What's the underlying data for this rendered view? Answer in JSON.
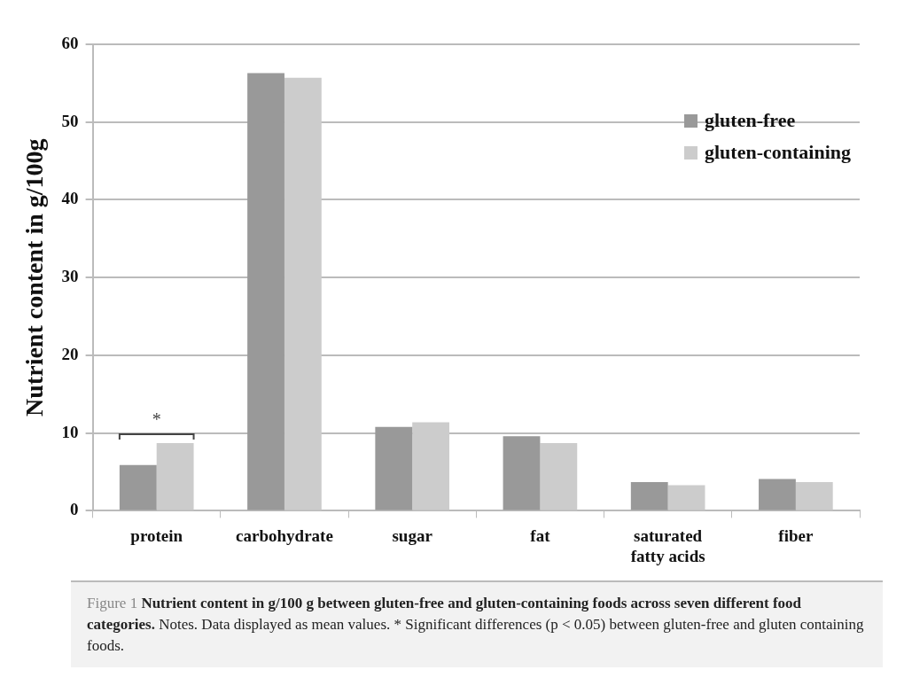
{
  "chart_data": {
    "type": "bar",
    "ylabel": "Nutrient content in g/100g",
    "categories": [
      "protein",
      "carbohydrate",
      "sugar",
      "fat",
      "saturated fatty acids",
      "fiber"
    ],
    "series": [
      {
        "name": "gluten-free",
        "color": "#999999",
        "values": [
          5.9,
          56.3,
          10.8,
          9.6,
          3.7,
          4.1
        ]
      },
      {
        "name": "gluten-containing",
        "color": "#cccccc",
        "values": [
          8.7,
          55.7,
          11.4,
          8.7,
          3.3,
          3.7
        ]
      }
    ],
    "ylim": [
      0,
      60
    ],
    "yticks": [
      0,
      10,
      20,
      30,
      40,
      50,
      60
    ],
    "grid": "y",
    "legend": "top right",
    "annotations": [
      "*",
      "Figure 1",
      "Nutrient content in g/100 g between gluten-free and gluten-containing foods across seven different food categories.",
      "Notes. Data displayed as mean values. * Significant differences (p < 0.05) between gluten-free and gluten containing foods."
    ]
  }
}
